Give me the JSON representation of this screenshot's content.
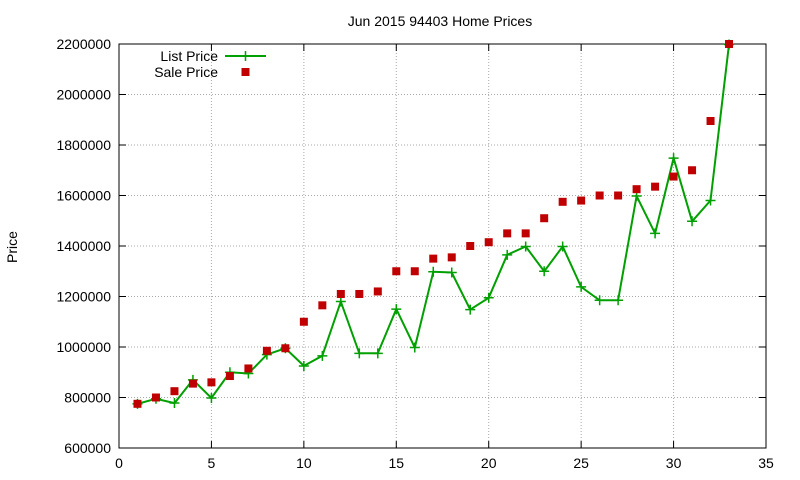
{
  "chart_data": {
    "type": "line",
    "title": "Jun 2015 94403 Home Prices",
    "xlabel": "",
    "ylabel": "Price",
    "xlim": [
      0,
      35
    ],
    "ylim": [
      600000,
      2200000
    ],
    "xticks": [
      0,
      5,
      10,
      15,
      20,
      25,
      30,
      35
    ],
    "yticks": [
      600000,
      800000,
      1000000,
      1200000,
      1400000,
      1600000,
      1800000,
      2000000,
      2200000
    ],
    "grid": true,
    "legend_position": "top-left",
    "series": [
      {
        "name": "List Price",
        "style": "line+cross",
        "color": "#00a000",
        "x": [
          1,
          2,
          3,
          4,
          5,
          6,
          7,
          8,
          9,
          10,
          11,
          12,
          13,
          14,
          15,
          16,
          17,
          18,
          19,
          20,
          21,
          22,
          23,
          24,
          25,
          26,
          27,
          28,
          29,
          30,
          31,
          32,
          33
        ],
        "y": [
          775000,
          795000,
          778000,
          870000,
          798000,
          900000,
          895000,
          970000,
          995000,
          925000,
          965000,
          1180000,
          975000,
          975000,
          1150000,
          998000,
          1298000,
          1295000,
          1148000,
          1195000,
          1365000,
          1398000,
          1300000,
          1398000,
          1238000,
          1185000,
          1185000,
          1598000,
          1450000,
          1748000,
          1498000,
          1580000,
          2198000
        ]
      },
      {
        "name": "Sale Price",
        "style": "square",
        "color": "#c00000",
        "x": [
          1,
          2,
          3,
          4,
          5,
          6,
          7,
          8,
          9,
          10,
          11,
          12,
          13,
          14,
          15,
          16,
          17,
          18,
          19,
          20,
          21,
          22,
          23,
          24,
          25,
          26,
          27,
          28,
          29,
          30,
          31,
          32,
          33
        ],
        "y": [
          775000,
          800000,
          825000,
          855000,
          860000,
          885000,
          915000,
          985000,
          995000,
          1100000,
          1165000,
          1210000,
          1210000,
          1220000,
          1300000,
          1300000,
          1350000,
          1355000,
          1400000,
          1415000,
          1450000,
          1450000,
          1510000,
          1575000,
          1580000,
          1600000,
          1600000,
          1625000,
          1635000,
          1675000,
          1700000,
          1895000,
          2200000
        ]
      }
    ]
  }
}
